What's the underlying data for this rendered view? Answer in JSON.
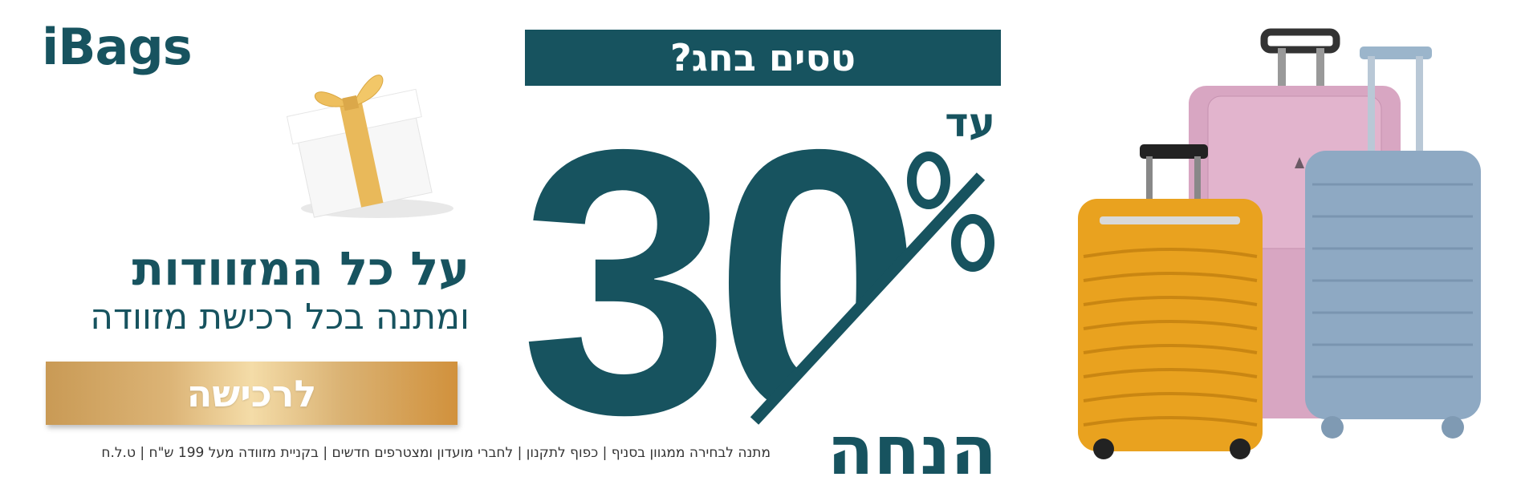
{
  "brand": {
    "logo_text": "iBags"
  },
  "colors": {
    "primary": "#17535f",
    "gold": "#d9b070",
    "white": "#ffffff"
  },
  "promo": {
    "banner": "טסים בחג?",
    "up_to": "עד",
    "percent_value": "30",
    "percent_sign": "%",
    "discount_word": "הנחה",
    "headline": "על כל המזוודות",
    "subline": "ומתנה בכל רכישת מזוודה",
    "cta_label": "לרכישה",
    "footer_note": "מתנה לבחירה ממגוון בסניף | כפוף לתקנון | לחברי מועדון ומצטרפים חדשים | בקניית מזוודה מעל 199 ש\"ח | ט.ל.ח"
  },
  "images": {
    "gift": "gift-box-icon",
    "luggage": [
      "orange-suitcase",
      "pink-suitcase",
      "blue-suitcase"
    ]
  }
}
